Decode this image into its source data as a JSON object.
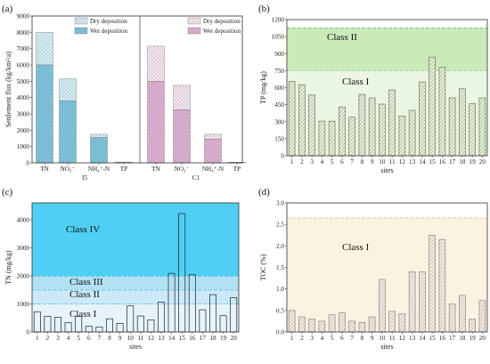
{
  "chart_data": [
    {
      "panel": "(a)",
      "type": "bar",
      "stacked": true,
      "ylabel": "Settlement flux (kg/km²/a)",
      "ylim": [
        0,
        9000
      ],
      "yticks": [
        "0",
        "1000",
        "2000",
        "3000",
        "4000",
        "5000",
        "6000",
        "7000",
        "8000",
        "9000"
      ],
      "categories": [
        "TN",
        "NO₃⁻",
        "NH₄⁺-N",
        "TP"
      ],
      "groups": [
        {
          "label": "I5",
          "series": [
            {
              "name": "Wet deposition",
              "values": [
                6000,
                3800,
                1550,
                40
              ]
            },
            {
              "name": "Dry deposition",
              "values": [
                2000,
                1350,
                200,
                10
              ]
            }
          ]
        },
        {
          "label": "C1",
          "series": [
            {
              "name": "Wet deposition",
              "values": [
                5000,
                3250,
                1450,
                30
              ]
            },
            {
              "name": "Dry deposition",
              "values": [
                2150,
                1500,
                300,
                10
              ]
            }
          ]
        }
      ],
      "legend": [
        "Dry deposition",
        "Wet deposition"
      ],
      "colors": {
        "wet1": "#7ec4dc",
        "dry1": "#d4ecf5",
        "wet2": "#dcb0d2",
        "dry2": "#f4e4f0"
      }
    },
    {
      "panel": "(b)",
      "type": "bar",
      "ylabel": "TP (mg/kg)",
      "xlabel": "sites",
      "ylim": [
        0,
        1200
      ],
      "yticks": [
        "0",
        "150",
        "300",
        "450",
        "600",
        "750",
        "900",
        "1050",
        "1200"
      ],
      "categories": [
        "1",
        "2",
        "3",
        "4",
        "5",
        "6",
        "7",
        "8",
        "9",
        "10",
        "11",
        "12",
        "13",
        "14",
        "15",
        "16",
        "17",
        "18",
        "19",
        "20"
      ],
      "values": [
        655,
        625,
        535,
        305,
        305,
        430,
        340,
        540,
        510,
        455,
        580,
        350,
        400,
        650,
        870,
        780,
        510,
        590,
        460,
        510
      ],
      "classes": [
        {
          "label": "Class I",
          "to": 750
        },
        {
          "label": "Class II",
          "to": 1125
        }
      ],
      "colors": {
        "band1": "#eaf5e4",
        "band2": "#cbeaba",
        "bar": "#e5eed8",
        "stroke": "#6e7d5e",
        "line": "#7bd07b"
      }
    },
    {
      "panel": "(c)",
      "type": "bar",
      "ylabel": "TN (mg/kg)",
      "xlabel": "sites",
      "ylim": [
        0,
        4600
      ],
      "yticks": [
        "0",
        "1000",
        "2000",
        "3000",
        "4000"
      ],
      "categories": [
        "1",
        "2",
        "3",
        "4",
        "5",
        "6",
        "7",
        "8",
        "9",
        "10",
        "11",
        "12",
        "13",
        "14",
        "15",
        "16",
        "17",
        "18",
        "19",
        "20"
      ],
      "values": [
        720,
        560,
        520,
        330,
        550,
        200,
        180,
        470,
        300,
        930,
        570,
        430,
        1060,
        2090,
        4220,
        2040,
        790,
        1330,
        580,
        1220
      ],
      "classes": [
        {
          "label": "Class I",
          "to": 1000
        },
        {
          "label": "Class II",
          "to": 1500
        },
        {
          "label": "Class III",
          "to": 2000
        },
        {
          "label": "Class IV",
          "to": 4600
        }
      ],
      "colors": {
        "band1": "#e6f3fb",
        "band2": "#cbe9f7",
        "band3": "#b2e1f3",
        "band4": "#4ecff3",
        "line": "#2aa6dd"
      }
    },
    {
      "panel": "(d)",
      "type": "bar",
      "ylabel": "TOC (%)",
      "xlabel": "sites",
      "ylim": [
        0,
        3.0
      ],
      "yticks": [
        "0.0",
        "0.5",
        "1.0",
        "1.5",
        "2.0",
        "2.5",
        "3.0"
      ],
      "categories": [
        "1",
        "2",
        "3",
        "4",
        "5",
        "6",
        "7",
        "8",
        "9",
        "10",
        "11",
        "12",
        "13",
        "14",
        "15",
        "16",
        "17",
        "18",
        "19",
        "20"
      ],
      "values": [
        0.5,
        0.35,
        0.3,
        0.25,
        0.4,
        0.45,
        0.25,
        0.22,
        0.35,
        1.22,
        0.48,
        0.42,
        1.4,
        1.4,
        2.25,
        2.15,
        0.65,
        0.85,
        0.3,
        0.73
      ],
      "classes": [
        {
          "label": "Class I",
          "to": 2.65
        }
      ],
      "colors": {
        "band1": "#fbf3e2",
        "bar": "#f3ebdf",
        "stroke": "#888",
        "line": "#f2c8a8"
      }
    }
  ]
}
